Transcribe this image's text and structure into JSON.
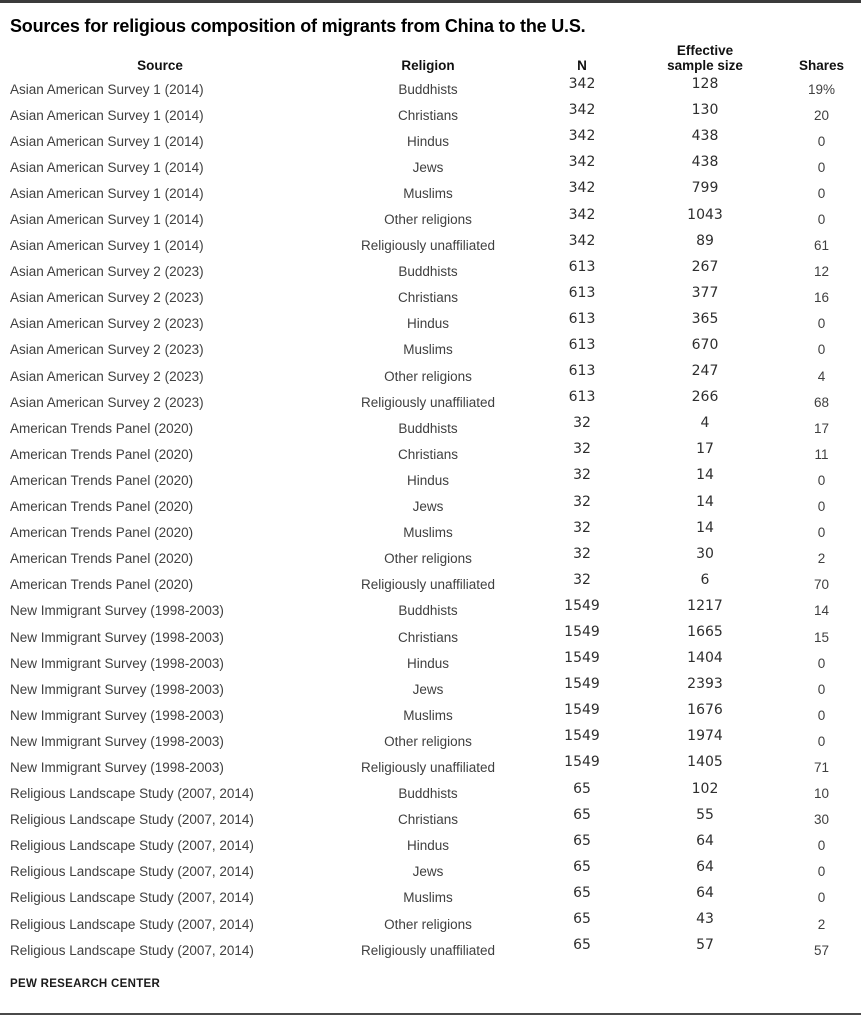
{
  "title": "Sources for religious composition of migrants from China to the U.S.",
  "footer": {
    "label": "PEW RESEARCH CENTER"
  },
  "colors": {
    "rule": "#3b3b3b",
    "title_text": "#000000",
    "body_text": "#3f3f3f"
  },
  "table": {
    "columns": {
      "source": "Source",
      "religion": "Religion",
      "n": "N",
      "effective_sample_size": "Effective sample size",
      "shares": "Shares"
    }
  },
  "chart_data": {
    "type": "table",
    "title": "Sources for religious composition of migrants from China to the U.S.",
    "columns": [
      "Source",
      "Religion",
      "N",
      "Effective sample size",
      "Shares"
    ],
    "rows": [
      [
        "Asian American Survey 1 (2014)",
        "Buddhists",
        "342",
        "128",
        "19%"
      ],
      [
        "Asian American Survey 1 (2014)",
        "Christians",
        "342",
        "130",
        "20"
      ],
      [
        "Asian American Survey 1 (2014)",
        "Hindus",
        "342",
        "438",
        "0"
      ],
      [
        "Asian American Survey 1 (2014)",
        "Jews",
        "342",
        "438",
        "0"
      ],
      [
        "Asian American Survey 1 (2014)",
        "Muslims",
        "342",
        "799",
        "0"
      ],
      [
        "Asian American Survey 1 (2014)",
        "Other religions",
        "342",
        "1043",
        "0"
      ],
      [
        "Asian American Survey 1 (2014)",
        "Religiously unaffiliated",
        "342",
        "89",
        "61"
      ],
      [
        "Asian American Survey 2 (2023)",
        "Buddhists",
        "613",
        "267",
        "12"
      ],
      [
        "Asian American Survey 2 (2023)",
        "Christians",
        "613",
        "377",
        "16"
      ],
      [
        "Asian American Survey 2 (2023)",
        "Hindus",
        "613",
        "365",
        "0"
      ],
      [
        "Asian American Survey 2 (2023)",
        "Muslims",
        "613",
        "670",
        "0"
      ],
      [
        "Asian American Survey 2 (2023)",
        "Other religions",
        "613",
        "247",
        "4"
      ],
      [
        "Asian American Survey 2 (2023)",
        "Religiously unaffiliated",
        "613",
        "266",
        "68"
      ],
      [
        "American Trends Panel (2020)",
        "Buddhists",
        "32",
        "4",
        "17"
      ],
      [
        "American Trends Panel (2020)",
        "Christians",
        "32",
        "17",
        "11"
      ],
      [
        "American Trends Panel (2020)",
        "Hindus",
        "32",
        "14",
        "0"
      ],
      [
        "American Trends Panel (2020)",
        "Jews",
        "32",
        "14",
        "0"
      ],
      [
        "American Trends Panel (2020)",
        "Muslims",
        "32",
        "14",
        "0"
      ],
      [
        "American Trends Panel (2020)",
        "Other religions",
        "32",
        "30",
        "2"
      ],
      [
        "American Trends Panel (2020)",
        "Religiously unaffiliated",
        "32",
        "6",
        "70"
      ],
      [
        "New Immigrant Survey (1998-2003)",
        "Buddhists",
        "1549",
        "1217",
        "14"
      ],
      [
        "New Immigrant Survey (1998-2003)",
        "Christians",
        "1549",
        "1665",
        "15"
      ],
      [
        "New Immigrant Survey (1998-2003)",
        "Hindus",
        "1549",
        "1404",
        "0"
      ],
      [
        "New Immigrant Survey (1998-2003)",
        "Jews",
        "1549",
        "2393",
        "0"
      ],
      [
        "New Immigrant Survey (1998-2003)",
        "Muslims",
        "1549",
        "1676",
        "0"
      ],
      [
        "New Immigrant Survey (1998-2003)",
        "Other religions",
        "1549",
        "1974",
        "0"
      ],
      [
        "New Immigrant Survey (1998-2003)",
        "Religiously unaffiliated",
        "1549",
        "1405",
        "71"
      ],
      [
        "Religious Landscape Study (2007, 2014)",
        "Buddhists",
        "65",
        "102",
        "10"
      ],
      [
        "Religious Landscape Study (2007, 2014)",
        "Christians",
        "65",
        "55",
        "30"
      ],
      [
        "Religious Landscape Study (2007, 2014)",
        "Hindus",
        "65",
        "64",
        "0"
      ],
      [
        "Religious Landscape Study (2007, 2014)",
        "Jews",
        "65",
        "64",
        "0"
      ],
      [
        "Religious Landscape Study (2007, 2014)",
        "Muslims",
        "65",
        "64",
        "0"
      ],
      [
        "Religious Landscape Study (2007, 2014)",
        "Other religions",
        "65",
        "43",
        "2"
      ],
      [
        "Religious Landscape Study (2007, 2014)",
        "Religiously unaffiliated",
        "65",
        "57",
        "57"
      ]
    ]
  }
}
